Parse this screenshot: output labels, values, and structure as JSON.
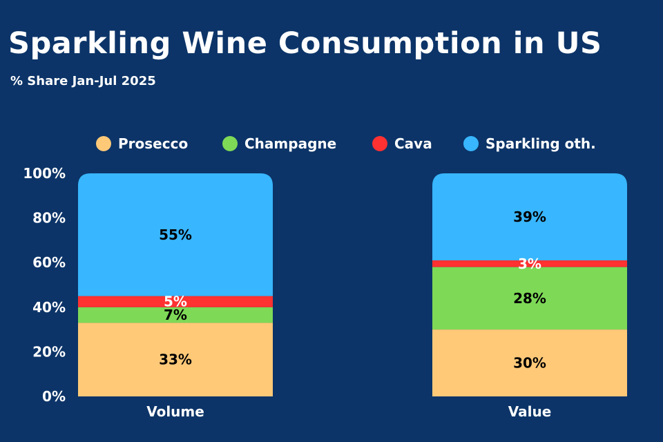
{
  "chart_data": {
    "type": "bar",
    "stacked": true,
    "title": "Sparkling Wine Consumption in US",
    "subtitle": "% Share Jan-Jul 2025",
    "categories": [
      "Volume",
      "Value"
    ],
    "series": [
      {
        "name": "Prosecco",
        "values": [
          33,
          30
        ],
        "color": "#ffc978",
        "label_color": "#000000"
      },
      {
        "name": "Champagne",
        "values": [
          7,
          28
        ],
        "color": "#7ed957",
        "label_color": "#000000"
      },
      {
        "name": "Cava",
        "values": [
          5,
          3
        ],
        "color": "#ff3131",
        "label_color": "#ffffff"
      },
      {
        "name": "Sparkling oth.",
        "values": [
          55,
          39
        ],
        "color": "#38b6ff",
        "label_color": "#000000"
      }
    ],
    "ylim": [
      0,
      100
    ],
    "yticks": [
      "0%",
      "20%",
      "40%",
      "60%",
      "80%",
      "100%"
    ],
    "value_suffix": "%",
    "grid": false,
    "legend_position": "top",
    "background": "#0c3468"
  }
}
